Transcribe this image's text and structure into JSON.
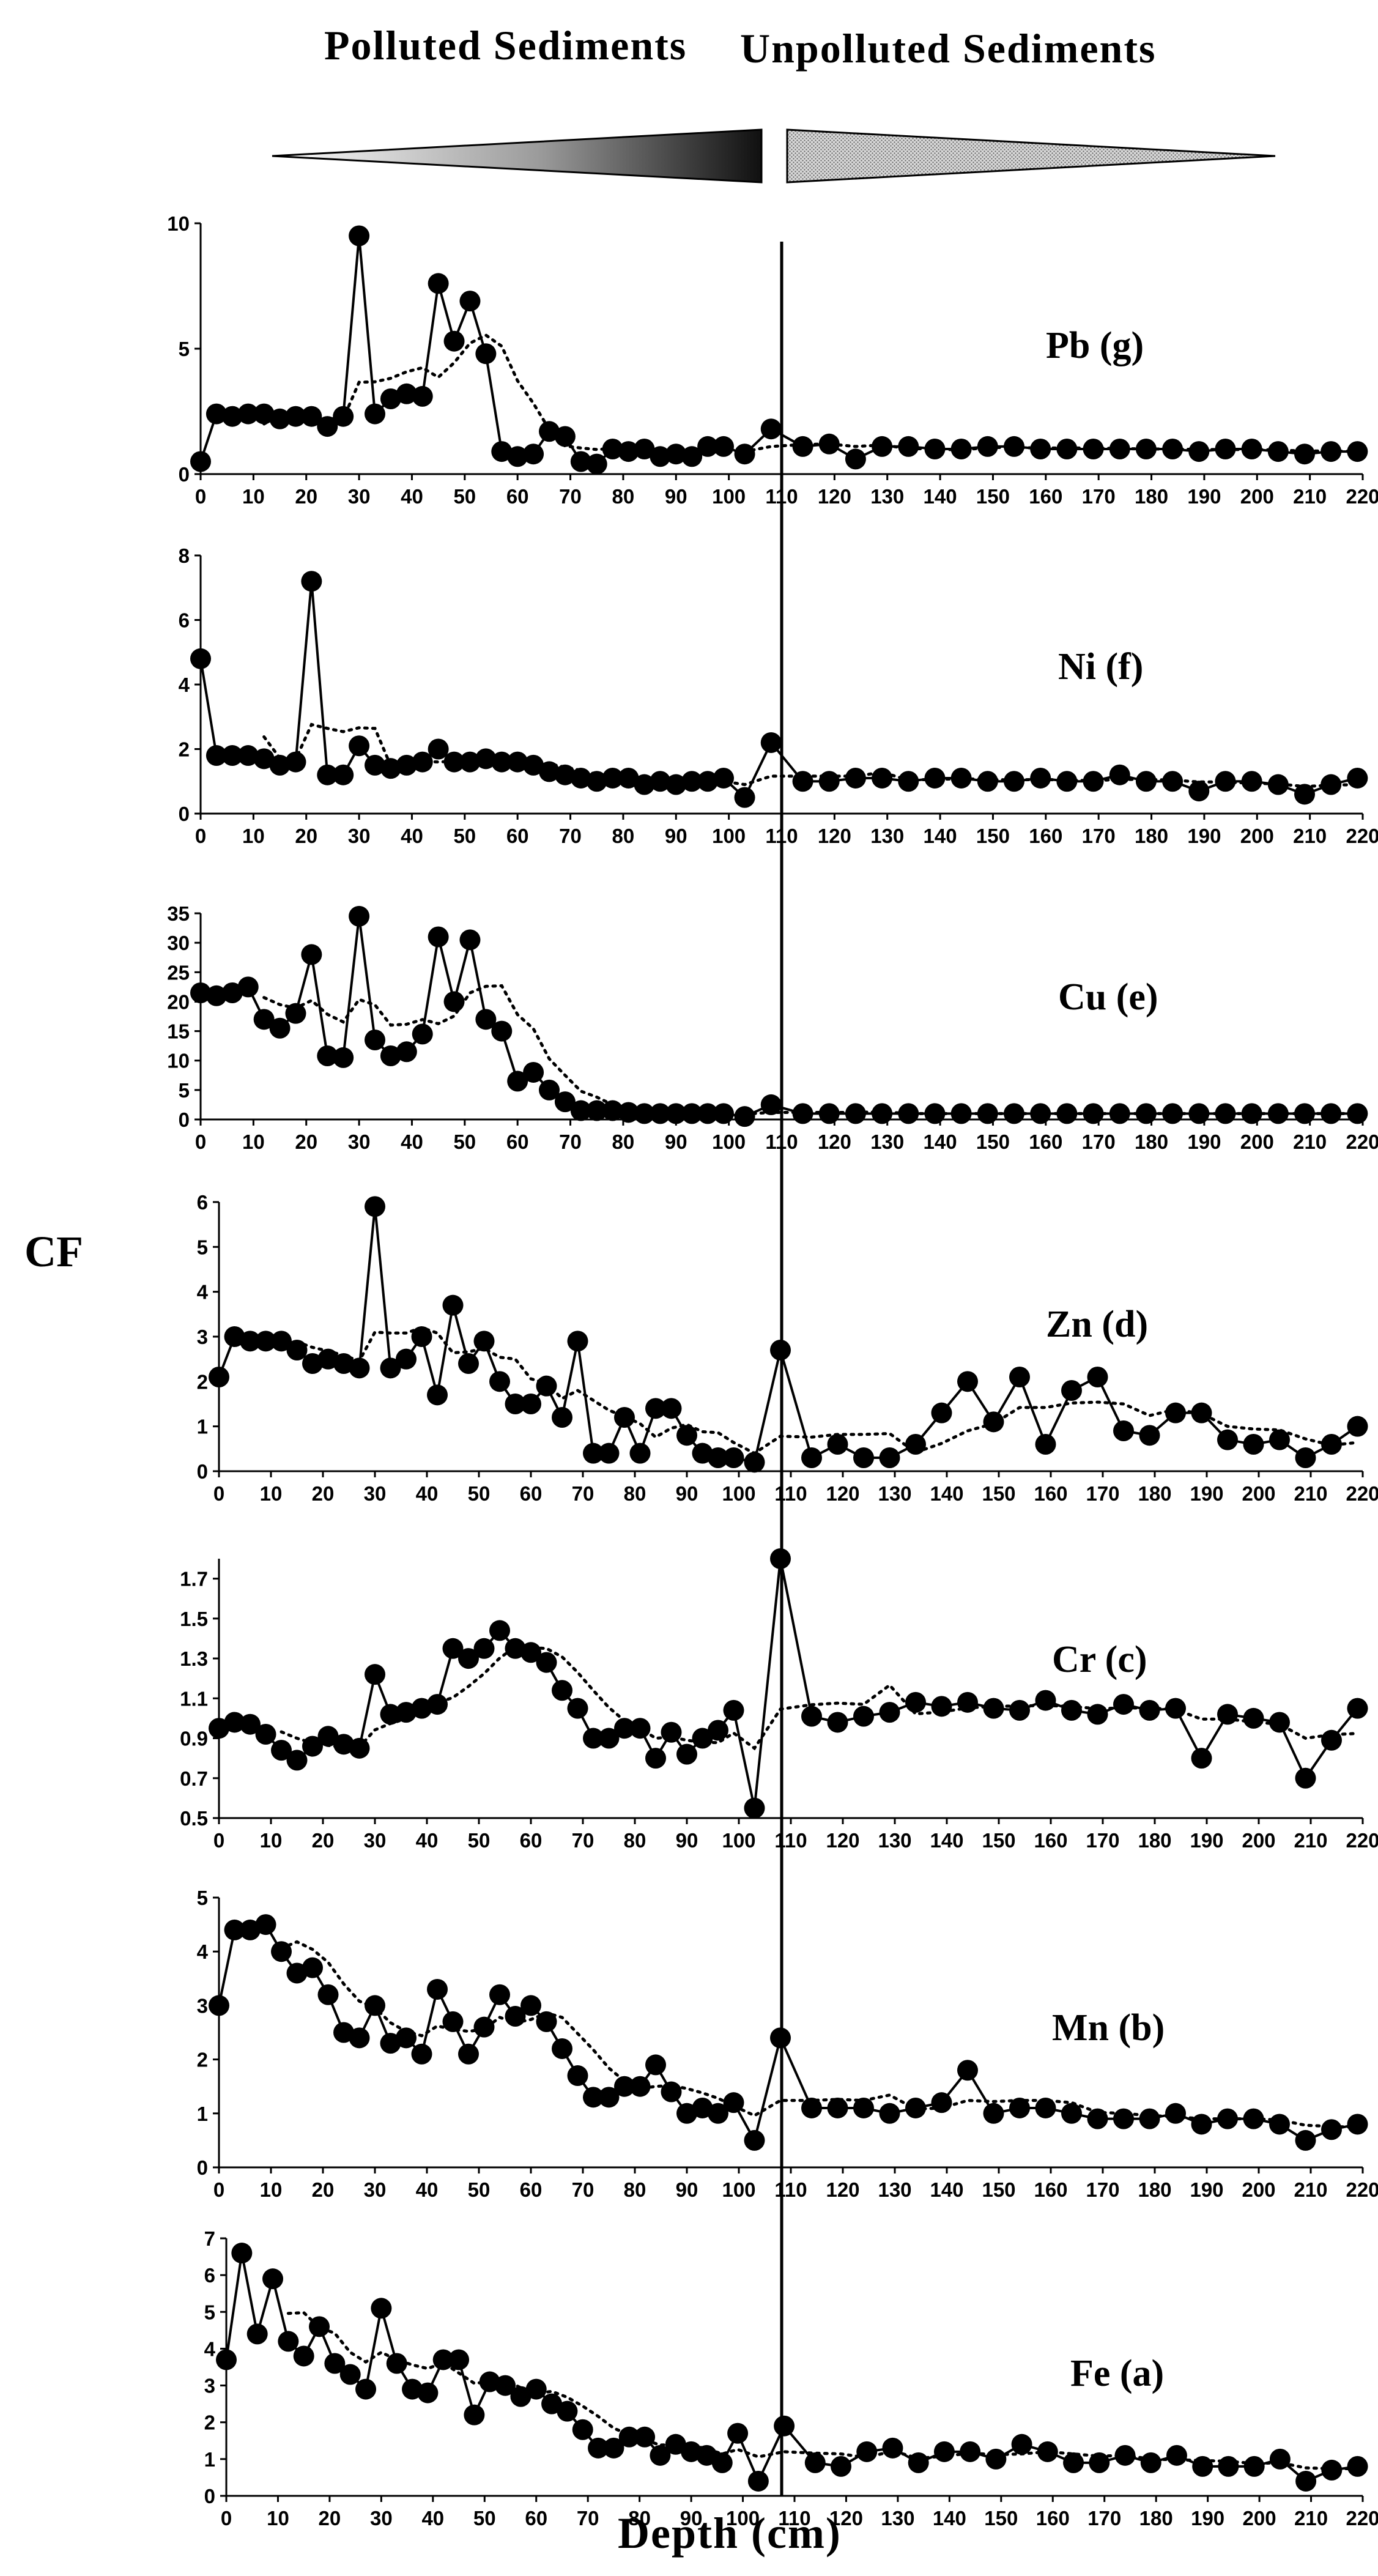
{
  "header": {
    "polluted": "Polluted Sediments",
    "unpolluted": "Unpolluted Sediments"
  },
  "axes": {
    "ylabel": "CF",
    "xlabel": "Depth (cm)"
  },
  "colors": {
    "series": "#000000",
    "left_arrow_dark": "#111111",
    "right_arrow_fill": "#bdbdbd"
  },
  "boundary_depth": 110,
  "chart_data": [
    {
      "type": "line",
      "element": "Pb",
      "label": "Pb (g)",
      "xlim": [
        0,
        220
      ],
      "ylim": [
        0,
        10
      ],
      "yticks": [
        0,
        5,
        10
      ],
      "xticks": [
        0,
        10,
        20,
        30,
        40,
        50,
        60,
        70,
        80,
        90,
        100,
        110,
        120,
        130,
        140,
        150,
        160,
        170,
        180,
        190,
        200,
        210,
        220
      ],
      "x": [
        0,
        3,
        6,
        9,
        12,
        15,
        18,
        21,
        24,
        27,
        30,
        33,
        36,
        39,
        42,
        45,
        48,
        51,
        54,
        57,
        60,
        63,
        66,
        69,
        72,
        75,
        78,
        81,
        84,
        87,
        90,
        93,
        96,
        99,
        103,
        108,
        114,
        119,
        124,
        129,
        134,
        139,
        144,
        149,
        154,
        159,
        164,
        169,
        174,
        179,
        184,
        189,
        194,
        199,
        204,
        209,
        214,
        219
      ],
      "values": [
        0.5,
        2.4,
        2.3,
        2.4,
        2.4,
        2.2,
        2.3,
        2.3,
        1.9,
        2.3,
        9.5,
        2.4,
        3.0,
        3.2,
        3.1,
        7.6,
        5.3,
        6.9,
        4.8,
        0.9,
        0.7,
        0.8,
        1.7,
        1.5,
        0.5,
        0.4,
        1.0,
        0.9,
        1.0,
        0.7,
        0.8,
        0.7,
        1.1,
        1.1,
        0.8,
        1.8,
        1.1,
        1.2,
        0.6,
        1.1,
        1.1,
        1.0,
        1.0,
        1.1,
        1.1,
        1.0,
        1.0,
        1.0,
        1.0,
        1.0,
        1.0,
        0.9,
        1.0,
        1.0,
        0.9,
        0.8,
        0.9,
        0.9
      ]
    },
    {
      "type": "line",
      "element": "Ni",
      "label": "Ni (f)",
      "xlim": [
        0,
        220
      ],
      "ylim": [
        0,
        8
      ],
      "yticks": [
        0,
        2,
        4,
        6,
        8
      ],
      "xticks": [
        0,
        10,
        20,
        30,
        40,
        50,
        60,
        70,
        80,
        90,
        100,
        110,
        120,
        130,
        140,
        150,
        160,
        170,
        180,
        190,
        200,
        210,
        220
      ],
      "x": [
        0,
        3,
        6,
        9,
        12,
        15,
        18,
        21,
        24,
        27,
        30,
        33,
        36,
        39,
        42,
        45,
        48,
        51,
        54,
        57,
        60,
        63,
        66,
        69,
        72,
        75,
        78,
        81,
        84,
        87,
        90,
        93,
        96,
        99,
        103,
        108,
        114,
        119,
        124,
        129,
        134,
        139,
        144,
        149,
        154,
        159,
        164,
        169,
        174,
        179,
        184,
        189,
        194,
        199,
        204,
        209,
        214,
        219
      ],
      "values": [
        4.8,
        1.8,
        1.8,
        1.8,
        1.7,
        1.5,
        1.6,
        7.2,
        1.2,
        1.2,
        2.1,
        1.5,
        1.4,
        1.5,
        1.6,
        2.0,
        1.6,
        1.6,
        1.7,
        1.6,
        1.6,
        1.5,
        1.3,
        1.2,
        1.1,
        1.0,
        1.1,
        1.1,
        0.9,
        1.0,
        0.9,
        1.0,
        1.0,
        1.1,
        0.5,
        2.2,
        1.0,
        1.0,
        1.1,
        1.1,
        1.0,
        1.1,
        1.1,
        1.0,
        1.0,
        1.1,
        1.0,
        1.0,
        1.2,
        1.0,
        1.0,
        0.7,
        1.0,
        1.0,
        0.9,
        0.6,
        0.9,
        1.1
      ]
    },
    {
      "type": "line",
      "element": "Cu",
      "label": "Cu (e)",
      "xlim": [
        0,
        220
      ],
      "ylim": [
        0,
        35
      ],
      "yticks": [
        0,
        5,
        10,
        15,
        20,
        25,
        30,
        35
      ],
      "xticks": [
        0,
        10,
        20,
        30,
        40,
        50,
        60,
        70,
        80,
        90,
        100,
        110,
        120,
        130,
        140,
        150,
        160,
        170,
        180,
        190,
        200,
        210,
        220
      ],
      "x": [
        0,
        3,
        6,
        9,
        12,
        15,
        18,
        21,
        24,
        27,
        30,
        33,
        36,
        39,
        42,
        45,
        48,
        51,
        54,
        57,
        60,
        63,
        66,
        69,
        72,
        75,
        78,
        81,
        84,
        87,
        90,
        93,
        96,
        99,
        103,
        108,
        114,
        119,
        124,
        129,
        134,
        139,
        144,
        149,
        154,
        159,
        164,
        169,
        174,
        179,
        184,
        189,
        194,
        199,
        204,
        209,
        214,
        219
      ],
      "values": [
        21.5,
        21.0,
        21.5,
        22.5,
        17.0,
        15.5,
        18.0,
        28.0,
        10.8,
        10.5,
        34.5,
        13.5,
        10.8,
        11.5,
        14.5,
        31.0,
        20.0,
        30.5,
        17.0,
        15.0,
        6.5,
        8.0,
        5.0,
        3.0,
        1.5,
        1.5,
        1.5,
        1.2,
        1.0,
        1.0,
        1.0,
        1.0,
        1.0,
        1.0,
        0.5,
        2.5,
        1.0,
        1.0,
        1.0,
        1.0,
        1.0,
        1.0,
        1.0,
        1.0,
        1.0,
        1.0,
        1.0,
        1.0,
        1.0,
        1.0,
        1.0,
        1.0,
        1.0,
        1.0,
        1.0,
        1.0,
        1.0,
        1.0
      ]
    },
    {
      "type": "line",
      "element": "Zn",
      "label": "Zn (d)",
      "xlim": [
        0,
        220
      ],
      "ylim": [
        0,
        6
      ],
      "yticks": [
        0,
        1,
        2,
        3,
        4,
        5,
        6
      ],
      "xticks": [
        0,
        10,
        20,
        30,
        40,
        50,
        60,
        70,
        80,
        90,
        100,
        110,
        120,
        130,
        140,
        150,
        160,
        170,
        180,
        190,
        200,
        210,
        220
      ],
      "x": [
        0,
        3,
        6,
        9,
        12,
        15,
        18,
        21,
        24,
        27,
        30,
        33,
        36,
        39,
        42,
        45,
        48,
        51,
        54,
        57,
        60,
        63,
        66,
        69,
        72,
        75,
        78,
        81,
        84,
        87,
        90,
        93,
        96,
        99,
        103,
        108,
        114,
        119,
        124,
        129,
        134,
        139,
        144,
        149,
        154,
        159,
        164,
        169,
        174,
        179,
        184,
        189,
        194,
        199,
        204,
        209,
        214,
        219
      ],
      "values": [
        2.1,
        3.0,
        2.9,
        2.9,
        2.9,
        2.7,
        2.4,
        2.5,
        2.4,
        2.3,
        5.9,
        2.3,
        2.5,
        3.0,
        1.7,
        3.7,
        2.4,
        2.9,
        2.0,
        1.5,
        1.5,
        1.9,
        1.2,
        2.9,
        0.4,
        0.4,
        1.2,
        0.4,
        1.4,
        1.4,
        0.8,
        0.4,
        0.3,
        0.3,
        0.2,
        2.7,
        0.3,
        0.6,
        0.3,
        0.3,
        0.6,
        1.3,
        2.0,
        1.1,
        2.1,
        0.6,
        1.8,
        2.1,
        0.9,
        0.8,
        1.3,
        1.3,
        0.7,
        0.6,
        0.7,
        0.3,
        0.6,
        1.0
      ]
    },
    {
      "type": "line",
      "element": "Cr",
      "label": "Cr (c)",
      "xlim": [
        0,
        220
      ],
      "ylim": [
        0.5,
        1.8
      ],
      "yticks": [
        0.5,
        0.7,
        0.9,
        1.1,
        1.3,
        1.5,
        1.7
      ],
      "xticks": [
        0,
        10,
        20,
        30,
        40,
        50,
        60,
        70,
        80,
        90,
        100,
        110,
        120,
        130,
        140,
        150,
        160,
        170,
        180,
        190,
        200,
        210,
        220
      ],
      "x": [
        0,
        3,
        6,
        9,
        12,
        15,
        18,
        21,
        24,
        27,
        30,
        33,
        36,
        39,
        42,
        45,
        48,
        51,
        54,
        57,
        60,
        63,
        66,
        69,
        72,
        75,
        78,
        81,
        84,
        87,
        90,
        93,
        96,
        99,
        103,
        108,
        114,
        119,
        124,
        129,
        134,
        139,
        144,
        149,
        154,
        159,
        164,
        169,
        174,
        179,
        184,
        189,
        194,
        199,
        204,
        209,
        214,
        219
      ],
      "values": [
        0.95,
        0.98,
        0.97,
        0.92,
        0.84,
        0.79,
        0.86,
        0.91,
        0.87,
        0.85,
        1.22,
        1.02,
        1.03,
        1.05,
        1.07,
        1.35,
        1.3,
        1.35,
        1.44,
        1.35,
        1.33,
        1.28,
        1.14,
        1.05,
        0.9,
        0.9,
        0.95,
        0.95,
        0.8,
        0.93,
        0.82,
        0.9,
        0.94,
        1.04,
        0.55,
        1.8,
        1.01,
        0.98,
        1.01,
        1.03,
        1.08,
        1.06,
        1.08,
        1.05,
        1.04,
        1.09,
        1.04,
        1.02,
        1.07,
        1.04,
        1.05,
        0.8,
        1.02,
        1.0,
        0.98,
        0.7,
        0.89,
        1.05
      ]
    },
    {
      "type": "line",
      "element": "Mn",
      "label": "Mn (b)",
      "xlim": [
        0,
        220
      ],
      "ylim": [
        0,
        5
      ],
      "yticks": [
        0,
        1,
        2,
        3,
        4,
        5
      ],
      "xticks": [
        0,
        10,
        20,
        30,
        40,
        50,
        60,
        70,
        80,
        90,
        100,
        110,
        120,
        130,
        140,
        150,
        160,
        170,
        180,
        190,
        200,
        210,
        220
      ],
      "x": [
        0,
        3,
        6,
        9,
        12,
        15,
        18,
        21,
        24,
        27,
        30,
        33,
        36,
        39,
        42,
        45,
        48,
        51,
        54,
        57,
        60,
        63,
        66,
        69,
        72,
        75,
        78,
        81,
        84,
        87,
        90,
        93,
        96,
        99,
        103,
        108,
        114,
        119,
        124,
        129,
        134,
        139,
        144,
        149,
        154,
        159,
        164,
        169,
        174,
        179,
        184,
        189,
        194,
        199,
        204,
        209,
        214,
        219
      ],
      "values": [
        3.0,
        4.4,
        4.4,
        4.5,
        4.0,
        3.6,
        3.7,
        3.2,
        2.5,
        2.4,
        3.0,
        2.3,
        2.4,
        2.1,
        3.3,
        2.7,
        2.1,
        2.6,
        3.2,
        2.8,
        3.0,
        2.7,
        2.2,
        1.7,
        1.3,
        1.3,
        1.5,
        1.5,
        1.9,
        1.4,
        1.0,
        1.1,
        1.0,
        1.2,
        0.5,
        2.4,
        1.1,
        1.1,
        1.1,
        1.0,
        1.1,
        1.2,
        1.8,
        1.0,
        1.1,
        1.1,
        1.0,
        0.9,
        0.9,
        0.9,
        1.0,
        0.8,
        0.9,
        0.9,
        0.8,
        0.5,
        0.7,
        0.8
      ]
    },
    {
      "type": "line",
      "element": "Fe",
      "label": "Fe (a)",
      "xlim": [
        0,
        220
      ],
      "ylim": [
        0,
        7
      ],
      "yticks": [
        0,
        1,
        2,
        3,
        4,
        5,
        6,
        7
      ],
      "xticks": [
        0,
        10,
        20,
        30,
        40,
        50,
        60,
        70,
        80,
        90,
        100,
        110,
        120,
        130,
        140,
        150,
        160,
        170,
        180,
        190,
        200,
        210,
        220
      ],
      "x": [
        0,
        3,
        6,
        9,
        12,
        15,
        18,
        21,
        24,
        27,
        30,
        33,
        36,
        39,
        42,
        45,
        48,
        51,
        54,
        57,
        60,
        63,
        66,
        69,
        72,
        75,
        78,
        81,
        84,
        87,
        90,
        93,
        96,
        99,
        103,
        108,
        114,
        119,
        124,
        129,
        134,
        139,
        144,
        149,
        154,
        159,
        164,
        169,
        174,
        179,
        184,
        189,
        194,
        199,
        204,
        209,
        214,
        219
      ],
      "values": [
        3.7,
        6.6,
        4.4,
        5.9,
        4.2,
        3.8,
        4.6,
        3.6,
        3.3,
        2.9,
        5.1,
        3.6,
        2.9,
        2.8,
        3.7,
        3.7,
        2.2,
        3.1,
        3.0,
        2.7,
        2.9,
        2.5,
        2.3,
        1.8,
        1.3,
        1.3,
        1.6,
        1.6,
        1.1,
        1.4,
        1.2,
        1.1,
        0.9,
        1.7,
        0.4,
        1.9,
        0.9,
        0.8,
        1.2,
        1.3,
        0.9,
        1.2,
        1.2,
        1.0,
        1.4,
        1.2,
        0.9,
        0.9,
        1.1,
        0.9,
        1.1,
        0.8,
        0.8,
        0.8,
        1.0,
        0.4,
        0.7,
        0.8
      ]
    }
  ]
}
